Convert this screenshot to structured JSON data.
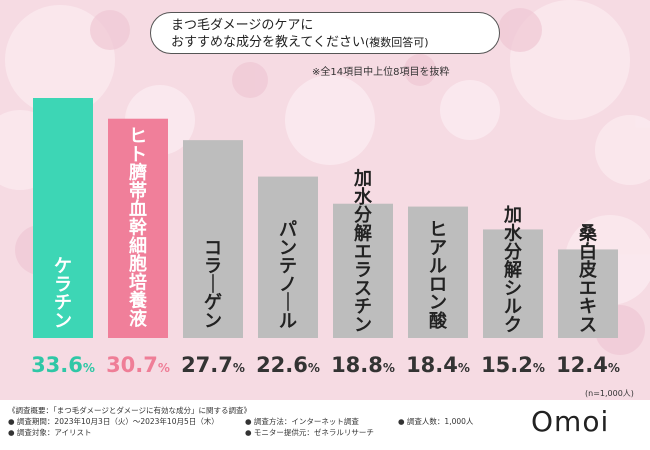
{
  "title": {
    "line1": "まつ毛ダメージのケアに",
    "line2_main": "おすすめな成分を教えてください",
    "line2_suffix": "(複数回答可)"
  },
  "note": "※全14項目中上位8項目を抜粋",
  "sample_size": "(n=1,000人)",
  "logo": "Omoi",
  "footer": {
    "summary": "《調査概要：「まつ毛ダメージとダメージに有効な成分」に関する調査》",
    "period": "● 調査期間：2023年10月3日（火）～2023年10月5日（木）",
    "target": "● 調査対象：アイリスト",
    "method": "● 調査方法：インターネット調査",
    "provider": "● モニター提供元：ゼネラルリサーチ",
    "count": "● 調査人数：1,000人"
  },
  "colors": {
    "top1": "#3dd6b5",
    "top2": "#f07f9a",
    "other": "#bdbdbd",
    "label_top1": "#2fc7a6",
    "label_top2": "#ef7e97",
    "label_other": "#333333"
  },
  "chart_data": {
    "type": "bar",
    "categories": [
      "ケラチン",
      "ヒト臍帯血幹細胞培養液",
      "コラーゲン",
      "パンテノール",
      "加水分解エラスチン",
      "ヒアルロン酸",
      "加水分解シルク",
      "桑白皮エキス"
    ],
    "values": [
      33.6,
      30.7,
      27.7,
      22.6,
      18.8,
      18.4,
      15.2,
      12.4
    ],
    "value_labels": [
      "33.6",
      "30.7",
      "27.7",
      "22.6",
      "18.8",
      "18.4",
      "15.2",
      "12.4"
    ],
    "unit": "%",
    "ylim": [
      0,
      33.6
    ],
    "grid": false
  }
}
